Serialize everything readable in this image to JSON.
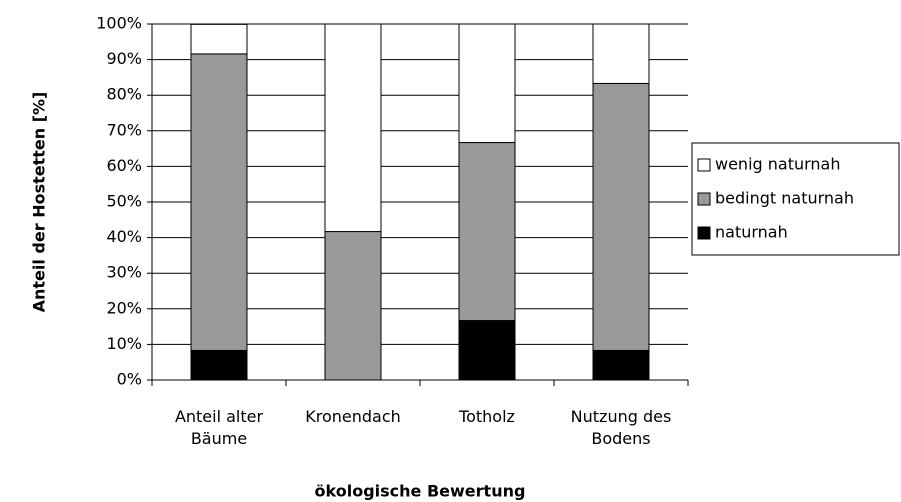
{
  "chart_data": {
    "type": "stacked_bar",
    "x_label": "ökologische Bewertung",
    "y_label": "Anteil der Hostetten [%]",
    "categories": [
      "Anteil alter Bäume",
      "Kronendach",
      "Totholz",
      "Nutzung des Bodens"
    ],
    "series": [
      {
        "name": "naturnah",
        "color": "#000000",
        "values": [
          8.3,
          0,
          16.7,
          8.3
        ]
      },
      {
        "name": "bedingt naturnah",
        "color": "#999999",
        "values": [
          83.3,
          41.7,
          50,
          75
        ]
      },
      {
        "name": "wenig naturnah",
        "color": "#ffffff",
        "values": [
          8.3,
          58.3,
          33.3,
          16.7
        ]
      }
    ],
    "ylim": [
      0,
      100
    ],
    "yticks": [
      {
        "value": 0,
        "label": "0%"
      },
      {
        "value": 10,
        "label": "10%"
      },
      {
        "value": 20,
        "label": "20%"
      },
      {
        "value": 30,
        "label": "30%"
      },
      {
        "value": 40,
        "label": "40%"
      },
      {
        "value": 50,
        "label": "50%"
      },
      {
        "value": 60,
        "label": "60%"
      },
      {
        "value": 70,
        "label": "70%"
      },
      {
        "value": 80,
        "label": "80%"
      },
      {
        "value": 90,
        "label": "90%"
      },
      {
        "value": 100,
        "label": "100%"
      }
    ],
    "grid": true,
    "legend": "right"
  }
}
